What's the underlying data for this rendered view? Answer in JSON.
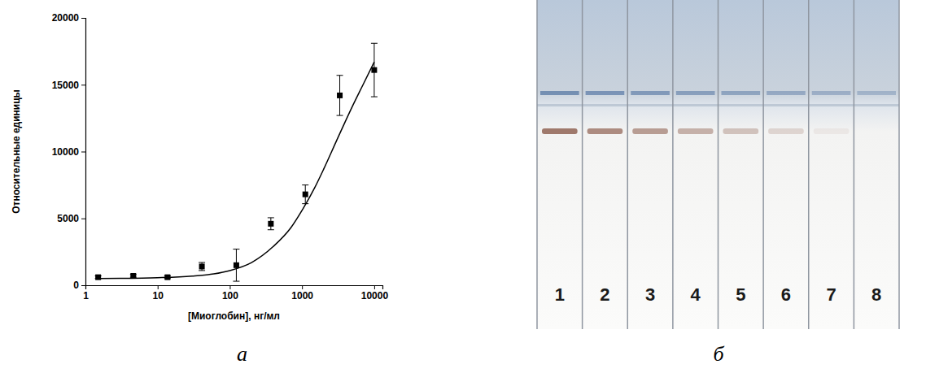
{
  "chart_data": {
    "type": "scatter",
    "x_label": "[Миоглобин], нг/мл",
    "y_label": "Относительные единицы",
    "log": "x",
    "grid": false,
    "xlim": [
      1,
      13000
    ],
    "xticks": [
      1,
      10,
      100,
      1000,
      10000
    ],
    "ylim": [
      0,
      20000
    ],
    "yticks": [
      0,
      5000,
      10000,
      15000,
      20000
    ],
    "series": [
      {
        "type": "scatter",
        "marker": "square",
        "color": "#000000",
        "x": [
          1.5,
          4.6,
          13.7,
          41,
          123,
          370,
          1111,
          3333,
          10000
        ],
        "values": [
          600,
          700,
          600,
          1400,
          1500,
          4600,
          6800,
          14200,
          16100
        ],
        "errors": [
          100,
          100,
          100,
          300,
          1200,
          450,
          700,
          1500,
          2000
        ]
      },
      {
        "type": "line",
        "line_style": "solid",
        "color": "#000000",
        "x": [
          1.5,
          3,
          10,
          30,
          60,
          100,
          200,
          400,
          700,
          1000,
          1500,
          2000,
          3000,
          5000,
          7000,
          10000
        ],
        "values": [
          500,
          510,
          560,
          680,
          850,
          1100,
          1700,
          2900,
          4300,
          5600,
          7300,
          8700,
          10800,
          13400,
          15000,
          16700
        ]
      }
    ]
  },
  "panel_labels": [
    "а",
    "б"
  ],
  "strip_photo": {
    "lanes": [
      1,
      2,
      3,
      4,
      5,
      6,
      7,
      8
    ]
  }
}
